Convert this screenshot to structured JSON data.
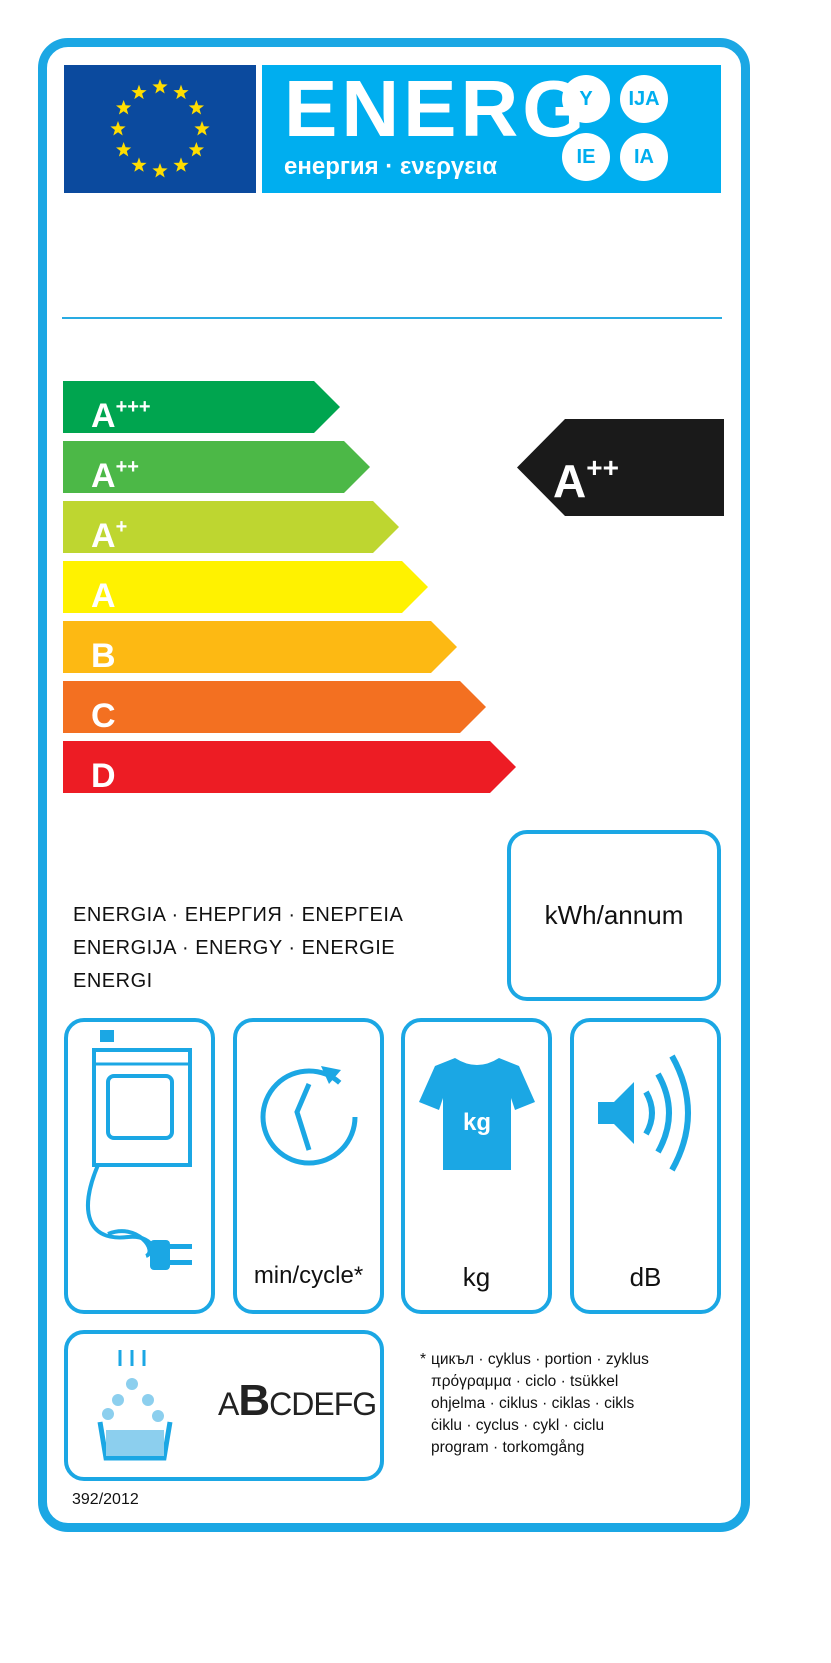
{
  "header": {
    "title": "ENERG",
    "subtitle": "енергия · ενεργεια",
    "suffixes": [
      "Y",
      "IJA",
      "IE",
      "IA"
    ]
  },
  "scale": {
    "classes": [
      {
        "letter": "A",
        "plus": "+++",
        "color": "#00a54f"
      },
      {
        "letter": "A",
        "plus": "++",
        "color": "#4cb847"
      },
      {
        "letter": "A",
        "plus": "+",
        "color": "#bed630"
      },
      {
        "letter": "A",
        "plus": "",
        "color": "#fff200"
      },
      {
        "letter": "B",
        "plus": "",
        "color": "#fdb913"
      },
      {
        "letter": "C",
        "plus": "",
        "color": "#f37021"
      },
      {
        "letter": "D",
        "plus": "",
        "color": "#ed1c24"
      }
    ],
    "rating": {
      "letter": "A",
      "plus": "++",
      "color": "#1a1a1a"
    }
  },
  "energy": {
    "lines": [
      "ENERGIA · ЕНЕРГИЯ · ΕΝΕΡΓΕΙΑ",
      "ENERGIJA · ENERGY · ENERGIE",
      "ENERGI"
    ],
    "unit": "kWh/annum"
  },
  "icons": [
    {
      "icon": "dryer-plug-icon",
      "unit": ""
    },
    {
      "icon": "cycle-clock-icon",
      "unit": "min/cycle*"
    },
    {
      "icon": "tshirt-kg-icon",
      "unit": "kg",
      "icon_text": "kg"
    },
    {
      "icon": "speaker-icon",
      "unit": "dB"
    }
  ],
  "condensation": {
    "icon": "water-drops-basin-icon",
    "scale_first": "A",
    "scale_selected": "B",
    "scale_rest": "CDEFG"
  },
  "footnote": {
    "marker": "*",
    "lines": [
      "цикъл · cyklus · portion · zyklus",
      "πρόγραμμα · ciclo · tsükkel",
      "ohjelma · ciklus · ciklas · cikls",
      "ċiklu · cyclus · cykl · ciclu",
      "program · torkomgång"
    ]
  },
  "regulation": "392/2012",
  "colors": {
    "accent": "#1ba7e4",
    "banner": "#00aeef",
    "flag": "#0b4a9e"
  }
}
